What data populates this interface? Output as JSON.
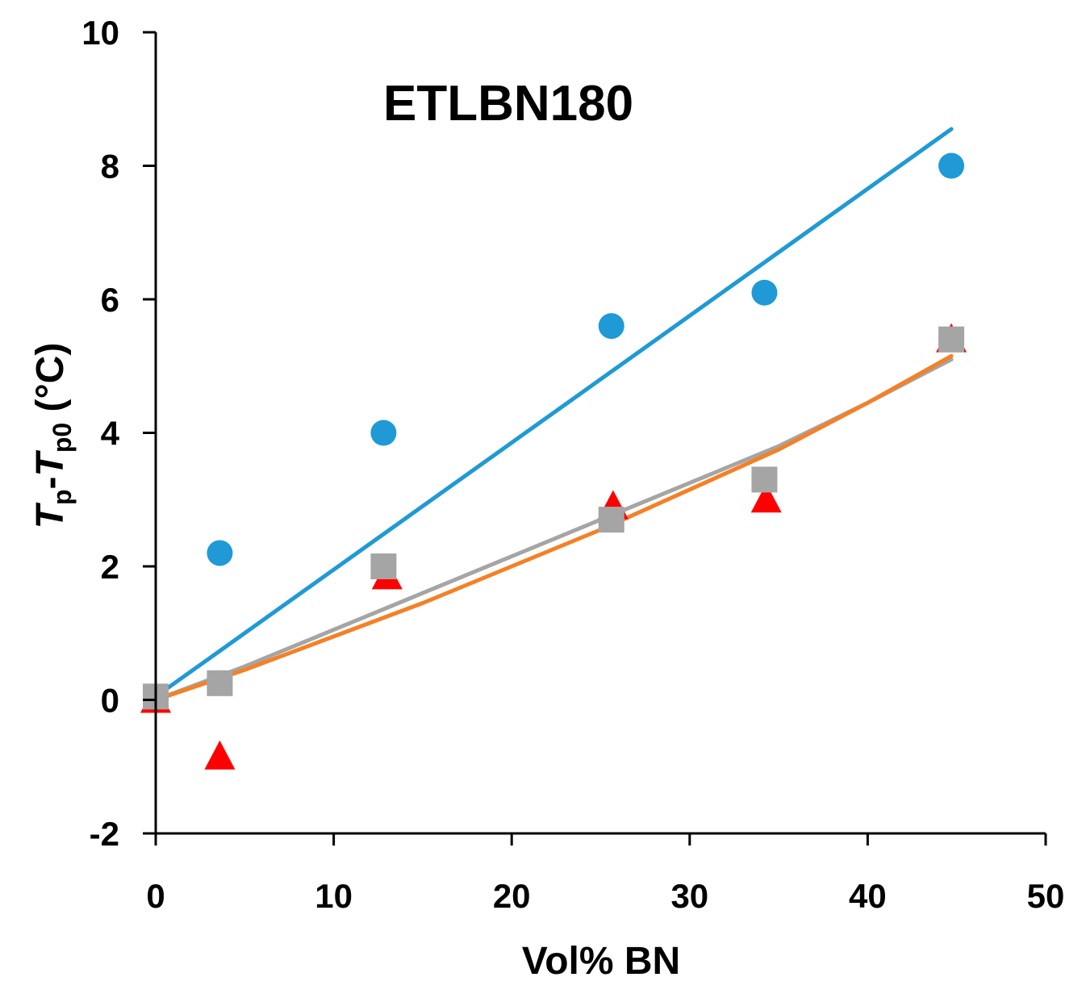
{
  "chart_data": {
    "type": "scatter",
    "title": "ETLBN180",
    "xlabel": "Vol% BN",
    "ylabel": {
      "t1": "T",
      "s1": "p",
      "dash": "-",
      "t2": "T",
      "s2": "p0",
      "unit": " (°C)"
    },
    "xlim": [
      0,
      50
    ],
    "ylim": [
      -2,
      10
    ],
    "xticks": [
      0,
      10,
      20,
      30,
      40,
      50
    ],
    "yticks": [
      -2,
      0,
      2,
      4,
      6,
      8,
      10
    ],
    "grid": false,
    "series": [
      {
        "name": "circles",
        "marker": "circle",
        "color": "#1f9ad6",
        "x": [
          3.6,
          12.8,
          25.6,
          34.2,
          44.7
        ],
        "y": [
          2.2,
          4.0,
          5.6,
          6.1,
          8.0
        ]
      },
      {
        "name": "triangles",
        "marker": "triangle",
        "color": "#ff0000",
        "x": [
          0,
          3.6,
          13.0,
          25.7,
          34.3,
          44.7
        ],
        "y": [
          0,
          -0.85,
          1.85,
          2.9,
          3.0,
          5.4
        ]
      },
      {
        "name": "squares",
        "marker": "square",
        "color": "#a5a5a5",
        "x": [
          0,
          3.6,
          12.8,
          25.6,
          34.2,
          44.7
        ],
        "y": [
          0.05,
          0.25,
          2.0,
          2.7,
          3.3,
          5.4
        ]
      }
    ],
    "fits": [
      {
        "name": "blue-linear-fit",
        "color": "#1f9ad6",
        "x": [
          0,
          44.7
        ],
        "y": [
          0.05,
          8.55
        ]
      },
      {
        "name": "gray-fit",
        "color": "#a5a5a5",
        "x": [
          0,
          5,
          10,
          15,
          20,
          25,
          30,
          35,
          40,
          44.7
        ],
        "y": [
          0,
          0.5,
          1.05,
          1.6,
          2.15,
          2.7,
          3.25,
          3.8,
          4.45,
          5.1
        ]
      },
      {
        "name": "orange-fit",
        "color": "#f58025",
        "x": [
          0,
          5,
          10,
          15,
          20,
          25,
          30,
          35,
          40,
          44.7
        ],
        "y": [
          0,
          0.45,
          0.95,
          1.45,
          2.0,
          2.55,
          3.15,
          3.75,
          4.45,
          5.15
        ]
      }
    ]
  }
}
